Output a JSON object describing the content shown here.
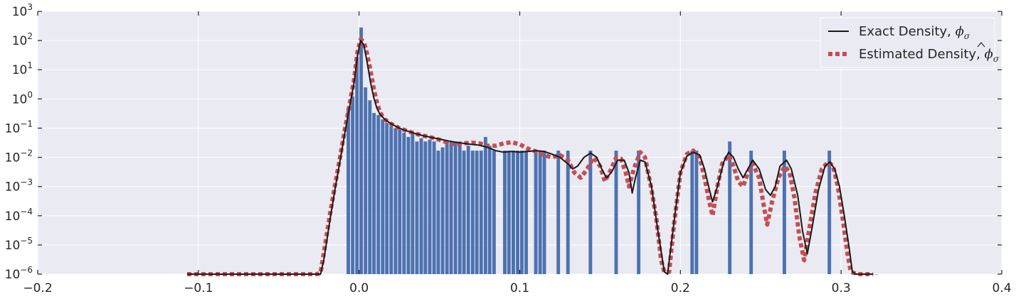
{
  "chart_data": {
    "type": "bar",
    "title": "",
    "xlabel": "",
    "ylabel": "",
    "xlim": [
      -0.2,
      0.4
    ],
    "ylim": [
      1e-06,
      1000
    ],
    "yscale": "log",
    "grid": true,
    "legend_position": "top-right",
    "x_ticks": [
      -0.2,
      -0.1,
      0.0,
      0.1,
      0.2,
      0.3,
      0.4
    ],
    "x_tick_labels": [
      "−0.2",
      "−0.1",
      "0.0",
      "0.1",
      "0.2",
      "0.3",
      "0.4"
    ],
    "y_ticks": [
      1e-06,
      1e-05,
      0.0001,
      0.001,
      0.01,
      0.1,
      1,
      10,
      100,
      1000
    ],
    "y_tick_labels": [
      {
        "base": "10",
        "exp": "-6"
      },
      {
        "base": "10",
        "exp": "-5"
      },
      {
        "base": "10",
        "exp": "-4"
      },
      {
        "base": "10",
        "exp": "-3"
      },
      {
        "base": "10",
        "exp": "-2"
      },
      {
        "base": "10",
        "exp": "-1"
      },
      {
        "base": "10",
        "exp": "0"
      },
      {
        "base": "10",
        "exp": "1"
      },
      {
        "base": "10",
        "exp": "2"
      },
      {
        "base": "10",
        "exp": "3"
      }
    ],
    "histogram": {
      "color": "#4c72b0",
      "bar_width": 0.0027,
      "x": [
        -0.0067,
        -0.004,
        -0.0013,
        0.0013,
        0.004,
        0.0067,
        0.0093,
        0.012,
        0.0147,
        0.0173,
        0.02,
        0.0227,
        0.0253,
        0.028,
        0.0307,
        0.0333,
        0.036,
        0.0387,
        0.0413,
        0.044,
        0.0467,
        0.0493,
        0.052,
        0.0547,
        0.0573,
        0.06,
        0.0627,
        0.0653,
        0.068,
        0.0707,
        0.0733,
        0.076,
        0.0787,
        0.0813,
        0.084,
        0.0907,
        0.0933,
        0.096,
        0.0987,
        0.1013,
        0.104,
        0.11,
        0.1127,
        0.1153,
        0.124,
        0.13,
        0.144,
        0.16,
        0.174,
        0.2073,
        0.21,
        0.2307,
        0.244,
        0.2647,
        0.2927,
        0.322
      ],
      "values": [
        0.5,
        1.2,
        20,
        280,
        2.5,
        0.9,
        0.33,
        0.28,
        0.2,
        0.15,
        0.12,
        0.1,
        0.09,
        0.07,
        0.05,
        0.07,
        0.035,
        0.045,
        0.035,
        0.04,
        0.035,
        0.017,
        0.022,
        0.035,
        0.035,
        0.035,
        0.035,
        0.017,
        0.025,
        0.017,
        0.017,
        0.017,
        0.05,
        0.025,
        0.017,
        0.017,
        0.017,
        0.017,
        0.017,
        0.017,
        0.017,
        0.017,
        0.017,
        0.017,
        0.017,
        0.017,
        0.017,
        0.017,
        0.017,
        0.017,
        0.017,
        0.035,
        0.017,
        0.017,
        0.017,
        1e-06
      ]
    },
    "series": [
      {
        "name": "Exact Density, ϕσ",
        "legend_label": "Exact Density, ",
        "legend_math": "ϕ",
        "legend_sub": "σ",
        "color": "#1a1a1a",
        "style": "solid",
        "points": [
          [
            -0.107,
            1e-06
          ],
          [
            -0.03,
            1e-06
          ],
          [
            -0.024,
            1e-06
          ],
          [
            -0.022,
            3e-06
          ],
          [
            -0.02,
            1.5e-05
          ],
          [
            -0.018,
            8e-05
          ],
          [
            -0.015,
            0.0008
          ],
          [
            -0.012,
            0.007
          ],
          [
            -0.009,
            0.06
          ],
          [
            -0.006,
            0.5
          ],
          [
            -0.003,
            4
          ],
          [
            -0.001,
            30
          ],
          [
            0.001,
            100
          ],
          [
            0.003,
            70
          ],
          [
            0.005,
            18
          ],
          [
            0.007,
            4
          ],
          [
            0.009,
            1.2
          ],
          [
            0.011,
            0.5
          ],
          [
            0.013,
            0.3
          ],
          [
            0.016,
            0.2
          ],
          [
            0.02,
            0.14
          ],
          [
            0.025,
            0.1
          ],
          [
            0.03,
            0.08
          ],
          [
            0.035,
            0.065
          ],
          [
            0.04,
            0.055
          ],
          [
            0.045,
            0.048
          ],
          [
            0.05,
            0.042
          ],
          [
            0.055,
            0.037
          ],
          [
            0.06,
            0.033
          ],
          [
            0.065,
            0.03
          ],
          [
            0.07,
            0.028
          ],
          [
            0.075,
            0.026
          ],
          [
            0.08,
            0.022
          ],
          [
            0.085,
            0.017
          ],
          [
            0.09,
            0.015
          ],
          [
            0.095,
            0.016
          ],
          [
            0.1,
            0.015
          ],
          [
            0.105,
            0.016
          ],
          [
            0.11,
            0.017
          ],
          [
            0.115,
            0.016
          ],
          [
            0.12,
            0.013
          ],
          [
            0.125,
            0.01
          ],
          [
            0.13,
            0.006
          ],
          [
            0.133,
            0.004
          ],
          [
            0.136,
            0.005
          ],
          [
            0.14,
            0.01
          ],
          [
            0.144,
            0.014
          ],
          [
            0.148,
            0.01
          ],
          [
            0.151,
            0.004
          ],
          [
            0.154,
            0.002
          ],
          [
            0.157,
            0.003
          ],
          [
            0.161,
            0.008
          ],
          [
            0.165,
            0.008
          ],
          [
            0.168,
            0.003
          ],
          [
            0.17,
            0.0006
          ],
          [
            0.172,
            0.002
          ],
          [
            0.175,
            0.008
          ],
          [
            0.178,
            0.007
          ],
          [
            0.182,
            0.001
          ],
          [
            0.186,
            3e-05
          ],
          [
            0.19,
            1.2e-06
          ],
          [
            0.192,
            1e-06
          ],
          [
            0.196,
            6e-05
          ],
          [
            0.2,
            0.003
          ],
          [
            0.204,
            0.011
          ],
          [
            0.208,
            0.015
          ],
          [
            0.212,
            0.012
          ],
          [
            0.215,
            0.004
          ],
          [
            0.218,
            0.0008
          ],
          [
            0.22,
            0.0003
          ],
          [
            0.223,
            0.001
          ],
          [
            0.227,
            0.007
          ],
          [
            0.23,
            0.015
          ],
          [
            0.233,
            0.01
          ],
          [
            0.236,
            0.004
          ],
          [
            0.239,
            0.002
          ],
          [
            0.242,
            0.004
          ],
          [
            0.245,
            0.008
          ],
          [
            0.249,
            0.004
          ],
          [
            0.253,
            0.0008
          ],
          [
            0.256,
            0.0005
          ],
          [
            0.259,
            0.001
          ],
          [
            0.262,
            0.005
          ],
          [
            0.266,
            0.008
          ],
          [
            0.269,
            0.004
          ],
          [
            0.273,
            0.0005
          ],
          [
            0.276,
            3e-05
          ],
          [
            0.279,
            5e-06
          ],
          [
            0.282,
            4e-05
          ],
          [
            0.286,
            0.0008
          ],
          [
            0.29,
            0.005
          ],
          [
            0.293,
            0.007
          ],
          [
            0.296,
            0.004
          ],
          [
            0.299,
            0.001
          ],
          [
            0.302,
            0.0001
          ],
          [
            0.305,
            8e-06
          ],
          [
            0.307,
            1.2e-06
          ],
          [
            0.309,
            1e-06
          ],
          [
            0.32,
            1e-06
          ]
        ]
      },
      {
        "name": "Estimated Density, ϕσ (hat)",
        "legend_label": "Estimated Density, ",
        "legend_math": "ϕ",
        "legend_sub": "σ",
        "legend_hat": true,
        "color": "#c44e52",
        "style": "dotted",
        "points": [
          [
            -0.107,
            1e-06
          ],
          [
            -0.026,
            1e-06
          ],
          [
            -0.024,
            1.1e-06
          ],
          [
            -0.022,
            5e-06
          ],
          [
            -0.02,
            2.5e-05
          ],
          [
            -0.018,
            0.00012
          ],
          [
            -0.015,
            0.0011
          ],
          [
            -0.012,
            0.009
          ],
          [
            -0.009,
            0.08
          ],
          [
            -0.006,
            0.6
          ],
          [
            -0.003,
            5
          ],
          [
            -0.001,
            40
          ],
          [
            0.001,
            110
          ],
          [
            0.003,
            90
          ],
          [
            0.005,
            35
          ],
          [
            0.007,
            10
          ],
          [
            0.009,
            2.5
          ],
          [
            0.011,
            0.8
          ],
          [
            0.013,
            0.35
          ],
          [
            0.016,
            0.2
          ],
          [
            0.02,
            0.14
          ],
          [
            0.025,
            0.1
          ],
          [
            0.03,
            0.08
          ],
          [
            0.035,
            0.065
          ],
          [
            0.04,
            0.055
          ],
          [
            0.045,
            0.048
          ],
          [
            0.05,
            0.04
          ],
          [
            0.055,
            0.032
          ],
          [
            0.06,
            0.028
          ],
          [
            0.065,
            0.03
          ],
          [
            0.07,
            0.032
          ],
          [
            0.075,
            0.03
          ],
          [
            0.08,
            0.025
          ],
          [
            0.085,
            0.025
          ],
          [
            0.09,
            0.03
          ],
          [
            0.095,
            0.033
          ],
          [
            0.1,
            0.028
          ],
          [
            0.105,
            0.02
          ],
          [
            0.11,
            0.016
          ],
          [
            0.115,
            0.012
          ],
          [
            0.12,
            0.01
          ],
          [
            0.125,
            0.012
          ],
          [
            0.13,
            0.008
          ],
          [
            0.134,
            0.003
          ],
          [
            0.138,
            0.002
          ],
          [
            0.142,
            0.004
          ],
          [
            0.146,
            0.01
          ],
          [
            0.15,
            0.005
          ],
          [
            0.153,
            0.0015
          ],
          [
            0.157,
            0.004
          ],
          [
            0.16,
            0.01
          ],
          [
            0.163,
            0.009
          ],
          [
            0.166,
            0.003
          ],
          [
            0.168,
            0.001
          ],
          [
            0.171,
            0.004
          ],
          [
            0.175,
            0.015
          ],
          [
            0.178,
            0.01
          ],
          [
            0.182,
            0.0008
          ],
          [
            0.185,
            8e-05
          ],
          [
            0.188,
            3e-06
          ],
          [
            0.19,
            1.2e-06
          ],
          [
            0.193,
            1.2e-06
          ],
          [
            0.196,
            5e-05
          ],
          [
            0.2,
            0.003
          ],
          [
            0.204,
            0.013
          ],
          [
            0.208,
            0.017
          ],
          [
            0.212,
            0.01
          ],
          [
            0.215,
            0.002
          ],
          [
            0.218,
            0.0003
          ],
          [
            0.22,
            0.0001
          ],
          [
            0.223,
            0.001
          ],
          [
            0.226,
            0.006
          ],
          [
            0.23,
            0.012
          ],
          [
            0.233,
            0.005
          ],
          [
            0.236,
            0.0015
          ],
          [
            0.239,
            0.001
          ],
          [
            0.242,
            0.003
          ],
          [
            0.245,
            0.006
          ],
          [
            0.249,
            0.002
          ],
          [
            0.252,
            0.0002
          ],
          [
            0.254,
            5e-05
          ],
          [
            0.257,
            0.0003
          ],
          [
            0.261,
            0.002
          ],
          [
            0.265,
            0.005
          ],
          [
            0.268,
            0.003
          ],
          [
            0.271,
            0.0004
          ],
          [
            0.274,
            2e-05
          ],
          [
            0.277,
            3e-06
          ],
          [
            0.28,
            3e-05
          ],
          [
            0.284,
            0.0006
          ],
          [
            0.288,
            0.004
          ],
          [
            0.292,
            0.007
          ],
          [
            0.295,
            0.005
          ],
          [
            0.298,
            0.001
          ],
          [
            0.301,
            8e-05
          ],
          [
            0.304,
            5e-06
          ],
          [
            0.306,
            1.2e-06
          ],
          [
            0.31,
            1e-06
          ],
          [
            0.32,
            1e-06
          ]
        ]
      }
    ]
  }
}
